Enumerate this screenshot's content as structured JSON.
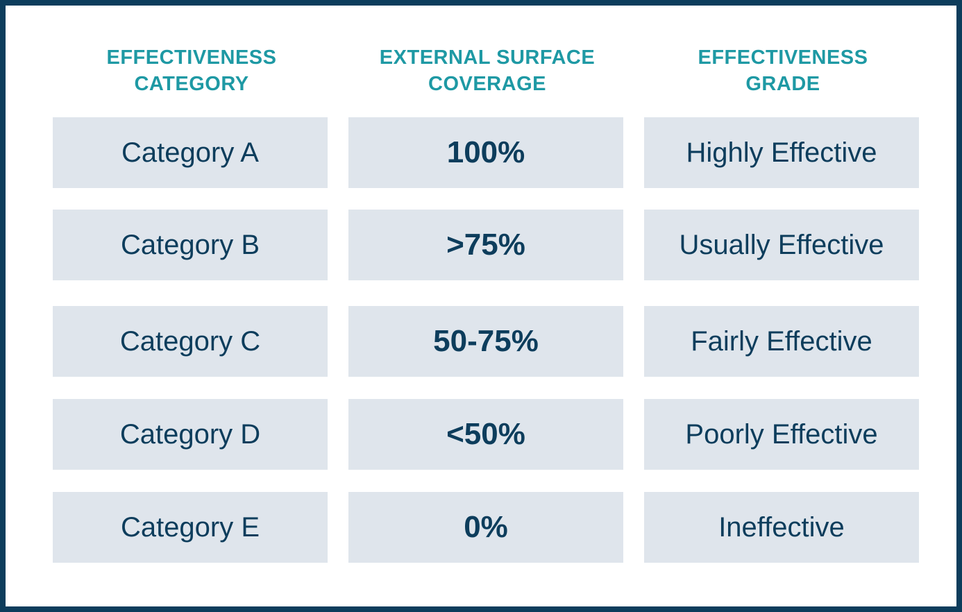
{
  "headers": [
    {
      "line1": "EFFECTIVENESS",
      "line2": "CATEGORY"
    },
    {
      "line1": "EXTERNAL SURFACE",
      "line2": "COVERAGE"
    },
    {
      "line1": "EFFECTIVENESS",
      "line2": "GRADE"
    }
  ],
  "rows": [
    {
      "category": "Category A",
      "coverage": "100%",
      "grade": "Highly Effective"
    },
    {
      "category": "Category B",
      "coverage": ">75%",
      "grade": "Usually Effective"
    },
    {
      "category": "Category C",
      "coverage": "50-75%",
      "grade": "Fairly Effective"
    },
    {
      "category": "Category D",
      "coverage": "<50%",
      "grade": "Poorly Effective"
    },
    {
      "category": "Category E",
      "coverage": "0%",
      "grade": "Ineffective"
    }
  ],
  "colors": {
    "border": "#0d3d5c",
    "header_text": "#1e99a4",
    "cell_background": "#dfe5ec",
    "cell_text": "#0d3d5c"
  }
}
